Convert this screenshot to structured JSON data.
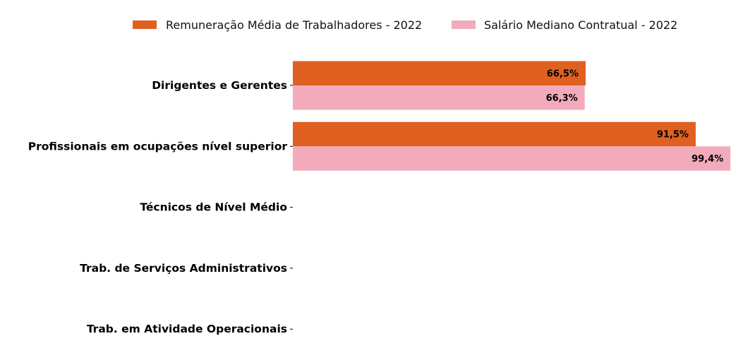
{
  "chart_data": {
    "type": "bar",
    "orientation": "horizontal",
    "categories": [
      "Dirigentes e Gerentes",
      "Profissionais em ocupações nível superior",
      "Técnicos de Nível Médio",
      "Trab. de Serviços Administrativos",
      "Trab. em Atividade Operacionais"
    ],
    "series": [
      {
        "name": "Remuneração Média de Trabalhadores - 2022",
        "color": "#e06020",
        "values": [
          66.5,
          91.5,
          null,
          null,
          null
        ],
        "labels": [
          "66,5%",
          "91,5%",
          "",
          "",
          ""
        ]
      },
      {
        "name": "Salário Mediano Contratual - 2022",
        "color": "#f2abbb",
        "values": [
          66.3,
          99.4,
          null,
          null,
          null
        ],
        "labels": [
          "66,3%",
          "99,4%",
          "",
          "",
          ""
        ]
      }
    ],
    "xlim": [
      0,
      100
    ],
    "grid": false,
    "legend_position": "top"
  }
}
